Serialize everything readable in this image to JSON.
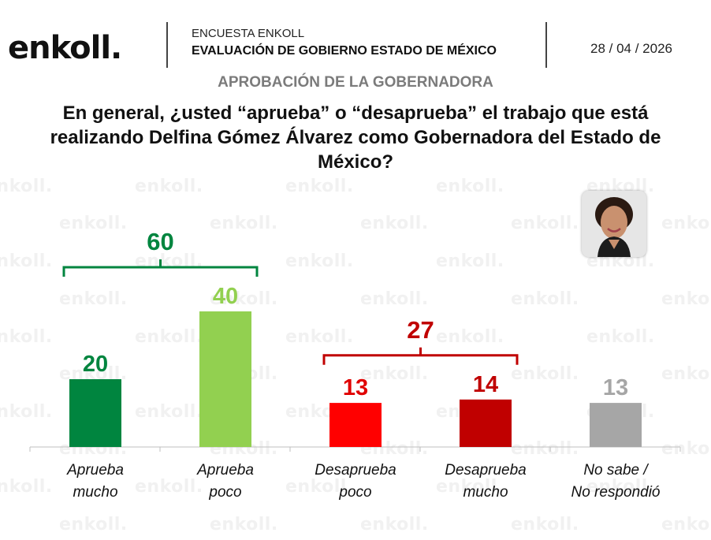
{
  "header": {
    "logo": "enkoll.",
    "survey": "ENCUESTA ENKOLL",
    "subtitle": "EVALUACIÓN DE GOBIERNO ESTADO DE MÉXICO",
    "date": "28 / 04 / 2026"
  },
  "section_title": "APROBACIÓN DE LA GOBERNADORA",
  "question": "En general, ¿usted “aprueba” o “desaprueba” el trabajo que está realizando Delfina Gómez Álvarez como Gobernadora del Estado de México?",
  "watermark": "enkoll.",
  "categories_display": [
    {
      "line1": "Aprueba",
      "line2": "mucho"
    },
    {
      "line1": "Aprueba",
      "line2": "poco"
    },
    {
      "line1": "Desaprueba",
      "line2": "poco"
    },
    {
      "line1": "Desaprueba",
      "line2": "mucho"
    },
    {
      "line1": "No sabe /",
      "line2": "No respondió"
    }
  ],
  "chart_data": {
    "type": "bar",
    "title": "",
    "xlabel": "",
    "ylabel": "",
    "categories": [
      "Aprueba mucho",
      "Aprueba poco",
      "Desaprueba poco",
      "Desaprueba mucho",
      "No sabe / No respondió"
    ],
    "values": [
      20,
      40,
      13,
      14,
      13
    ],
    "colors": [
      "#00853F",
      "#92D050",
      "#FF0000",
      "#C00000",
      "#A6A6A6"
    ],
    "label_colors": [
      "#00853F",
      "#92D050",
      "#E00000",
      "#C00000",
      "#A6A6A6"
    ],
    "groups": [
      {
        "total": 60,
        "from": 0,
        "to": 1,
        "color": "#00853F"
      },
      {
        "total": 27,
        "from": 2,
        "to": 3,
        "color": "#C00000"
      }
    ],
    "grid": false,
    "legend": "none"
  }
}
